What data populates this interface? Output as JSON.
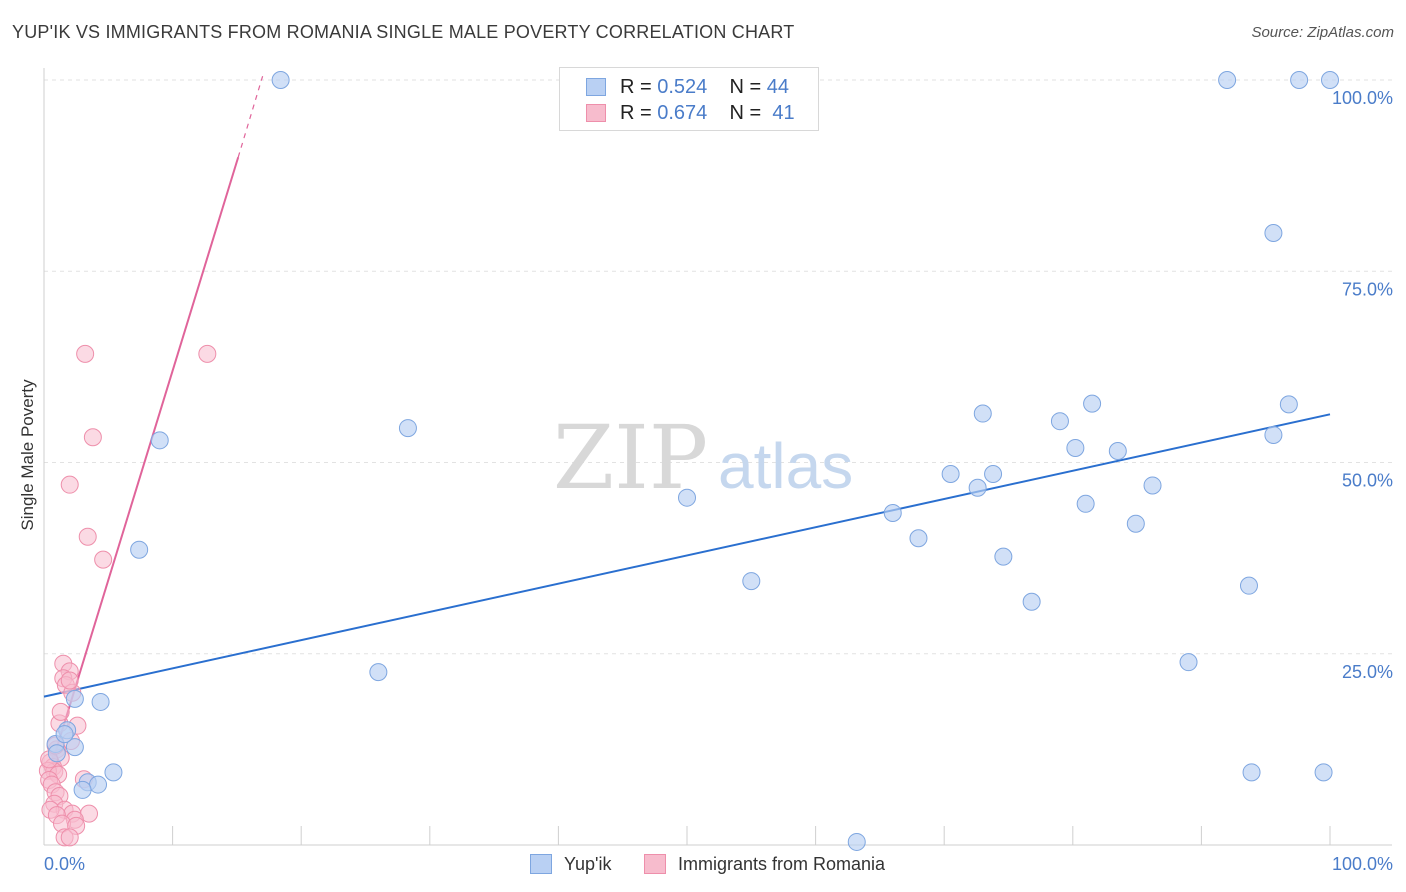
{
  "header": {
    "title": "YUP'IK VS IMMIGRANTS FROM ROMANIA SINGLE MALE POVERTY CORRELATION CHART",
    "source": "Source: ZipAtlas.com"
  },
  "watermark": {
    "zip": "ZIP",
    "atlas": "atlas"
  },
  "legend": {
    "r_label": "R =",
    "n_label": "N =",
    "series": [
      {
        "r": "0.524",
        "n": "44"
      },
      {
        "r": "0.674",
        "n": "41"
      }
    ]
  },
  "colors": {
    "blue_fill": "#b9d0f3",
    "blue_stroke": "#7ea6e0",
    "blue_line": "#2a6fcf",
    "pink_fill": "#f7bccd",
    "pink_stroke": "#ee8fab",
    "pink_line": "#e0649a"
  },
  "chart_data": {
    "type": "scatter",
    "title": "YUP'IK VS IMMIGRANTS FROM ROMANIA SINGLE MALE POVERTY CORRELATION CHART",
    "xlabel": "",
    "ylabel": "Single Male Poverty",
    "xlim": [
      0,
      100
    ],
    "ylim": [
      0,
      100
    ],
    "x_tick_labels": [
      "0.0%",
      "100.0%"
    ],
    "y_tick_labels": [
      {
        "value": 25,
        "label": "25.0%"
      },
      {
        "value": 50,
        "label": "50.0%"
      },
      {
        "value": 75,
        "label": "75.0%"
      },
      {
        "value": 100,
        "label": "100.0%"
      }
    ],
    "series": [
      {
        "name": "Yup'ik",
        "color": "blue",
        "points": [
          [
            18.4,
            100
          ],
          [
            92.0,
            100
          ],
          [
            97.6,
            100
          ],
          [
            100.0,
            100
          ],
          [
            95.6,
            80.0
          ],
          [
            96.8,
            57.6
          ],
          [
            95.6,
            53.6
          ],
          [
            7.4,
            38.6
          ],
          [
            9.0,
            52.9
          ],
          [
            28.3,
            54.5
          ],
          [
            2.4,
            19.1
          ],
          [
            4.4,
            18.7
          ],
          [
            1.8,
            15.0
          ],
          [
            2.4,
            12.8
          ],
          [
            0.9,
            13.2
          ],
          [
            5.4,
            9.5
          ],
          [
            3.4,
            8.2
          ],
          [
            4.2,
            7.9
          ],
          [
            3.0,
            7.2
          ],
          [
            26.0,
            22.6
          ],
          [
            50.0,
            45.4
          ],
          [
            55.0,
            34.5
          ],
          [
            66.0,
            43.4
          ],
          [
            68.0,
            40.1
          ],
          [
            70.5,
            48.5
          ],
          [
            72.6,
            46.7
          ],
          [
            73.0,
            56.4
          ],
          [
            73.8,
            48.5
          ],
          [
            74.6,
            37.7
          ],
          [
            76.8,
            31.8
          ],
          [
            79.0,
            55.4
          ],
          [
            80.2,
            51.9
          ],
          [
            81.5,
            57.7
          ],
          [
            81.0,
            44.6
          ],
          [
            83.5,
            51.5
          ],
          [
            84.9,
            42.0
          ],
          [
            86.2,
            47.0
          ],
          [
            89.0,
            23.9
          ],
          [
            93.7,
            33.9
          ],
          [
            93.9,
            9.5
          ],
          [
            99.5,
            9.5
          ],
          [
            63.2,
            0.4
          ],
          [
            1.0,
            12.0
          ],
          [
            1.6,
            14.5
          ]
        ]
      },
      {
        "name": "Immigrants from Romania",
        "color": "pink",
        "points": [
          [
            3.2,
            64.2
          ],
          [
            12.7,
            64.2
          ],
          [
            3.8,
            53.3
          ],
          [
            2.0,
            47.1
          ],
          [
            3.4,
            40.3
          ],
          [
            4.6,
            37.3
          ],
          [
            1.5,
            23.7
          ],
          [
            2.0,
            22.7
          ],
          [
            1.5,
            21.8
          ],
          [
            1.7,
            20.9
          ],
          [
            2.2,
            19.9
          ],
          [
            2.0,
            21.5
          ],
          [
            1.2,
            15.9
          ],
          [
            2.1,
            13.6
          ],
          [
            1.0,
            12.5
          ],
          [
            1.3,
            11.4
          ],
          [
            0.5,
            10.8
          ],
          [
            0.7,
            10.2
          ],
          [
            0.8,
            9.6
          ],
          [
            0.3,
            9.7
          ],
          [
            1.1,
            9.2
          ],
          [
            0.4,
            8.5
          ],
          [
            0.6,
            7.9
          ],
          [
            3.1,
            8.6
          ],
          [
            0.9,
            6.9
          ],
          [
            1.2,
            6.4
          ],
          [
            0.8,
            5.4
          ],
          [
            1.6,
            4.6
          ],
          [
            0.5,
            4.6
          ],
          [
            3.5,
            4.1
          ],
          [
            2.2,
            4.1
          ],
          [
            1.0,
            3.9
          ],
          [
            2.4,
            3.3
          ],
          [
            1.4,
            2.8
          ],
          [
            2.5,
            2.5
          ],
          [
            1.6,
            1.0
          ],
          [
            2.0,
            1.0
          ],
          [
            0.4,
            11.2
          ],
          [
            0.9,
            13.0
          ],
          [
            1.3,
            17.4
          ],
          [
            2.6,
            15.6
          ]
        ]
      }
    ],
    "trend_lines": [
      {
        "series": "Yup'ik",
        "x0": 0,
        "y0": 19.4,
        "x1": 100,
        "y1": 56.3,
        "style": "solid"
      },
      {
        "series": "Immigrants from Romania",
        "x0": 0.5,
        "y0": 10.0,
        "x1": 15.1,
        "y1": 89.9,
        "style": "solid"
      },
      {
        "series": "Immigrants from Romania",
        "x0": 15.1,
        "y0": 89.9,
        "x1": 17.0,
        "y1": 100.5,
        "style": "dashed"
      }
    ]
  },
  "bottom_legend": {
    "items": [
      {
        "label": "Yup'ik"
      },
      {
        "label": "Immigrants from Romania"
      }
    ]
  }
}
